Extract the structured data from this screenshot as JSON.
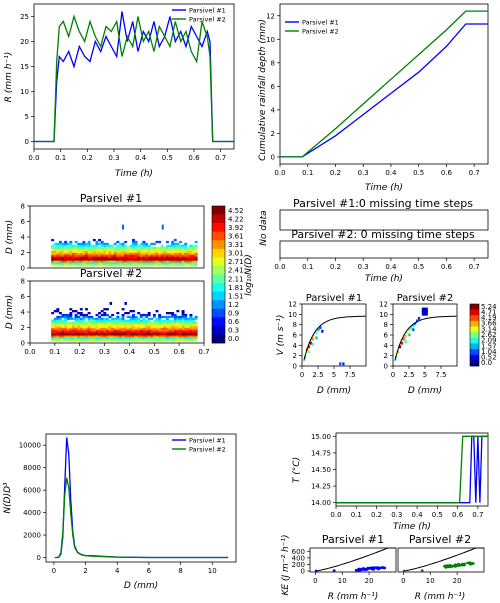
{
  "colors": {
    "p1": "#0000ff",
    "p2": "#008000",
    "curve": "#000000"
  },
  "series_names": [
    "Parsivel #1",
    "Parsivel #2"
  ],
  "chart_data": [
    {
      "id": "rain-rate",
      "type": "line",
      "xlabel": "Time (h)",
      "ylabel": "R (mm h⁻¹)",
      "xlim": [
        0,
        0.75
      ],
      "ylim": [
        -1.5,
        27.5
      ],
      "xticks": [
        0.0,
        0.1,
        0.2,
        0.3,
        0.4,
        0.5,
        0.6,
        0.7
      ],
      "yticks": [
        0,
        5,
        10,
        15,
        20,
        25
      ],
      "legend": "top-right",
      "series": [
        {
          "name": "Parsivel #1",
          "color": "#0000ff",
          "x": [
            0,
            0.075,
            0.085,
            0.095,
            0.11,
            0.13,
            0.15,
            0.17,
            0.19,
            0.21,
            0.23,
            0.25,
            0.27,
            0.29,
            0.31,
            0.33,
            0.35,
            0.37,
            0.39,
            0.41,
            0.43,
            0.45,
            0.47,
            0.49,
            0.51,
            0.53,
            0.55,
            0.57,
            0.59,
            0.61,
            0.63,
            0.65,
            0.66,
            0.67,
            0.75
          ],
          "y": [
            0,
            0,
            12,
            17,
            16,
            18,
            15,
            19,
            17,
            16,
            20,
            18,
            21,
            19,
            17,
            26,
            20,
            24,
            18,
            22,
            20,
            24,
            19,
            21,
            25,
            20,
            22,
            19,
            23,
            21,
            19,
            22,
            20,
            0,
            0
          ]
        },
        {
          "name": "Parsivel #2",
          "color": "#008000",
          "x": [
            0,
            0.075,
            0.085,
            0.095,
            0.11,
            0.13,
            0.15,
            0.17,
            0.19,
            0.21,
            0.23,
            0.25,
            0.27,
            0.29,
            0.31,
            0.33,
            0.35,
            0.37,
            0.39,
            0.41,
            0.43,
            0.45,
            0.47,
            0.49,
            0.51,
            0.53,
            0.55,
            0.57,
            0.59,
            0.61,
            0.63,
            0.65,
            0.66,
            0.67,
            0.75
          ],
          "y": [
            0,
            0,
            16,
            23,
            24,
            21,
            25,
            22,
            20,
            24,
            21,
            19,
            23,
            22,
            24,
            17,
            21,
            19,
            25,
            20,
            22,
            18,
            23,
            21,
            19,
            24,
            20,
            22,
            18,
            16,
            24,
            21,
            17,
            0,
            0
          ]
        }
      ]
    },
    {
      "id": "cumulative",
      "type": "line",
      "xlabel": "Time (h)",
      "ylabel": "Cumulative rainfall depth (mm)",
      "xlim": [
        0,
        0.75
      ],
      "ylim": [
        -0.6,
        13
      ],
      "xticks": [
        0.0,
        0.1,
        0.2,
        0.3,
        0.4,
        0.5,
        0.6,
        0.7
      ],
      "yticks": [
        0,
        2,
        4,
        6,
        8,
        10,
        12
      ],
      "legend": "top-left",
      "series": [
        {
          "name": "Parsivel #1",
          "color": "#0000ff",
          "x": [
            0,
            0.08,
            0.2,
            0.3,
            0.4,
            0.5,
            0.6,
            0.67,
            0.75
          ],
          "y": [
            0,
            0,
            1.8,
            3.6,
            5.4,
            7.2,
            9.4,
            11.3,
            11.3
          ]
        },
        {
          "name": "Parsivel #2",
          "color": "#008000",
          "x": [
            0,
            0.08,
            0.2,
            0.3,
            0.4,
            0.5,
            0.6,
            0.67,
            0.75
          ],
          "y": [
            0,
            0,
            2.4,
            4.5,
            6.6,
            8.7,
            10.8,
            12.4,
            12.4
          ]
        }
      ]
    },
    {
      "id": "dsd-heatmap",
      "type": "heatmap",
      "panels": [
        {
          "title": "Parsivel #1",
          "ylabel": "D (mm)",
          "xlim": [
            0,
            0.7
          ],
          "ylim": [
            0,
            8
          ],
          "yticks": [
            0,
            2,
            4,
            6,
            8
          ],
          "show_xticks": false
        },
        {
          "title": "Parsivel #2",
          "ylabel": "D (mm)",
          "xlim": [
            0,
            0.7
          ],
          "ylim": [
            0,
            8
          ],
          "yticks": [
            0,
            2,
            4,
            6,
            8
          ],
          "show_xticks": true
        }
      ],
      "xticks": [
        0.0,
        0.1,
        0.2,
        0.3,
        0.4,
        0.5,
        0.6,
        0.7
      ],
      "colorbar_label": "log₁₀N(D)",
      "colorbar_ticks": [
        "4.52",
        "4.22",
        "3.92",
        "3.61",
        "3.31",
        "3.01",
        "2.71",
        "2.41",
        "2.11",
        "1.81",
        "1.51",
        "1.2",
        "0.9",
        "0.6",
        "0.3",
        "0.0"
      ]
    },
    {
      "id": "missing-steps",
      "type": "table",
      "ylabel": "No data",
      "xlabel": "Time (h)",
      "xlim": [
        0,
        0.75
      ],
      "xticks": [
        0.0,
        0.1,
        0.2,
        0.3,
        0.4,
        0.5,
        0.6,
        0.7
      ],
      "labels": [
        "Parsivel #1:0 missing time steps",
        "Parsivel #2: 0 missing time steps"
      ]
    },
    {
      "id": "velocity-diameter",
      "type": "heatmap",
      "panels": [
        {
          "title": "Parsivel #1",
          "xlim": [
            0,
            10
          ],
          "ylim": [
            0,
            12
          ],
          "xticks": [
            0,
            2.5,
            5,
            7.5
          ],
          "yticks": [
            0,
            2,
            4,
            6,
            8,
            10,
            12
          ]
        },
        {
          "title": "Parsivel #2",
          "xlim": [
            0,
            10
          ],
          "ylim": [
            0,
            12
          ],
          "xticks": [
            0,
            2.5,
            5,
            7.5
          ],
          "yticks": [
            0,
            2,
            4,
            6,
            8,
            10,
            12
          ]
        }
      ],
      "xlabel": "D (mm)",
      "ylabel": "V (m s⁻¹)",
      "colorbar_ticks": [
        "5.24",
        "4.71",
        "4.19",
        "3.66",
        "3.14",
        "2.62",
        "2.09",
        "1.57",
        "1.04",
        "0.52",
        "0.0"
      ]
    },
    {
      "id": "nd-d3",
      "type": "line",
      "xlabel": "D (mm)",
      "ylabel": "N(D)D³",
      "xlim": [
        -0.5,
        11.5
      ],
      "ylim": [
        -400,
        11000
      ],
      "xticks": [
        0,
        2,
        4,
        6,
        8,
        10
      ],
      "yticks": [
        0,
        2000,
        4000,
        6000,
        8000,
        10000
      ],
      "legend": "top-right",
      "series": [
        {
          "name": "Parsivel #1",
          "color": "#0000ff",
          "x": [
            0.06,
            0.19,
            0.31,
            0.44,
            0.56,
            0.69,
            0.81,
            0.94,
            1.06,
            1.19,
            1.31,
            1.5,
            1.75,
            2.0,
            2.5,
            3.0,
            3.5,
            4.0,
            5.0,
            6.0,
            8.0,
            11.0
          ],
          "y": [
            0,
            0,
            20,
            300,
            1800,
            6500,
            10700,
            9200,
            5200,
            2300,
            1000,
            450,
            250,
            180,
            150,
            110,
            70,
            40,
            15,
            5,
            0,
            0
          ]
        },
        {
          "name": "Parsivel #2",
          "color": "#008000",
          "x": [
            0.06,
            0.19,
            0.31,
            0.44,
            0.56,
            0.69,
            0.81,
            0.94,
            1.06,
            1.19,
            1.31,
            1.5,
            1.75,
            2.0,
            2.5,
            3.0,
            3.5,
            4.0,
            5.0,
            6.0,
            8.0,
            11.0
          ],
          "y": [
            0,
            0,
            40,
            450,
            2200,
            5600,
            7100,
            6200,
            4000,
            2000,
            900,
            420,
            230,
            160,
            120,
            90,
            60,
            35,
            12,
            4,
            0,
            0
          ]
        }
      ]
    },
    {
      "id": "temperature",
      "type": "line",
      "xlabel": "Time (h)",
      "ylabel": "T (°C)",
      "xlim": [
        0,
        0.75
      ],
      "ylim": [
        13.95,
        15.05
      ],
      "xticks": [
        0.0,
        0.1,
        0.2,
        0.3,
        0.4,
        0.5,
        0.6,
        0.7
      ],
      "yticks": [
        "14.00",
        "14.25",
        "14.50",
        "14.75",
        "15.00"
      ],
      "series": [
        {
          "name": "Parsivel #1",
          "color": "#0000ff",
          "x": [
            0,
            0.66,
            0.67,
            0.68,
            0.69,
            0.7,
            0.71,
            0.72,
            0.75
          ],
          "y": [
            14,
            14,
            15,
            15,
            14,
            15,
            14,
            15,
            15
          ]
        },
        {
          "name": "Parsivel #2",
          "color": "#008000",
          "x": [
            0,
            0.61,
            0.625,
            0.75
          ],
          "y": [
            14,
            14,
            15,
            15
          ]
        }
      ]
    },
    {
      "id": "ke-r",
      "type": "scatter",
      "panels": [
        {
          "title": "Parsivel #1",
          "color": "#0000ff"
        },
        {
          "title": "Parsivel #2",
          "color": "#008000"
        }
      ],
      "xlabel": "R (mm h⁻¹)",
      "ylabel": "KE (J m⁻² h⁻¹)",
      "xlim": [
        -2,
        30
      ],
      "ylim": [
        -30,
        700
      ],
      "xticks": [
        0,
        10,
        20
      ],
      "yticks": [
        0,
        200,
        400,
        600
      ]
    }
  ]
}
